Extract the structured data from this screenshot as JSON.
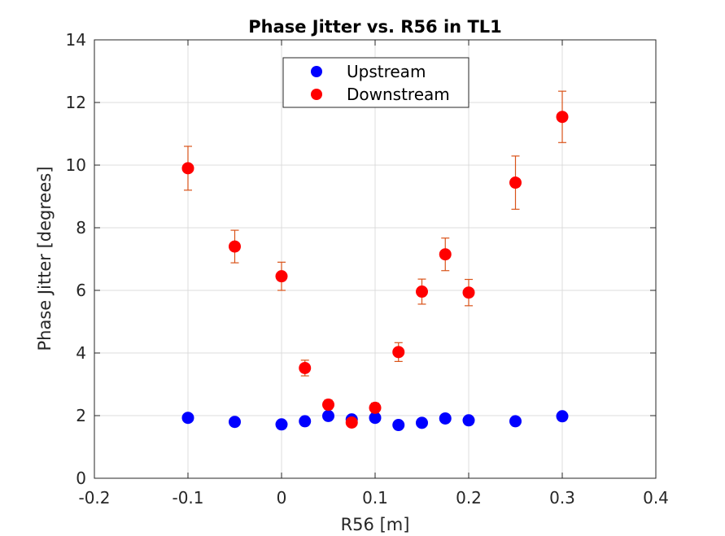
{
  "chart_data": {
    "type": "scatter",
    "title": "Phase Jitter vs. R56 in TL1",
    "xlabel": "R56 [m]",
    "ylabel": "Phase Jitter [degrees]",
    "xlim": [
      -0.2,
      0.4
    ],
    "ylim": [
      0,
      14
    ],
    "xticks": [
      -0.2,
      -0.1,
      0,
      0.1,
      0.2,
      0.3,
      0.4
    ],
    "xtick_labels": [
      "-0.2",
      "-0.1",
      "0",
      "0.1",
      "0.2",
      "0.3",
      "0.4"
    ],
    "yticks": [
      0,
      2,
      4,
      6,
      8,
      10,
      12,
      14
    ],
    "ytick_labels": [
      "0",
      "2",
      "4",
      "6",
      "8",
      "10",
      "12",
      "14"
    ],
    "grid": true,
    "legend_position": "top-center",
    "series": [
      {
        "name": "Upstream",
        "color": "#0000ff",
        "x": [
          -0.1,
          -0.05,
          0,
          0.025,
          0.05,
          0.075,
          0.1,
          0.125,
          0.15,
          0.175,
          0.2,
          0.25,
          0.3
        ],
        "y": [
          1.93,
          1.8,
          1.72,
          1.82,
          1.99,
          1.88,
          1.93,
          1.7,
          1.77,
          1.91,
          1.85,
          1.82,
          1.98
        ]
      },
      {
        "name": "Downstream",
        "color": "#ff0000",
        "error_color": "#d95319",
        "x": [
          -0.1,
          -0.05,
          0,
          0.025,
          0.05,
          0.075,
          0.1,
          0.125,
          0.15,
          0.175,
          0.2,
          0.25,
          0.3
        ],
        "y": [
          9.9,
          7.4,
          6.45,
          3.52,
          2.35,
          1.78,
          2.25,
          4.03,
          5.96,
          7.15,
          5.93,
          9.44,
          11.54
        ],
        "err_lower": [
          0.7,
          0.52,
          0.45,
          0.25,
          0.15,
          0.12,
          0.15,
          0.3,
          0.4,
          0.52,
          0.42,
          0.85,
          0.82
        ],
        "err_upper": [
          0.7,
          0.52,
          0.45,
          0.25,
          0.15,
          0.12,
          0.15,
          0.3,
          0.4,
          0.52,
          0.42,
          0.85,
          0.82
        ]
      }
    ]
  }
}
